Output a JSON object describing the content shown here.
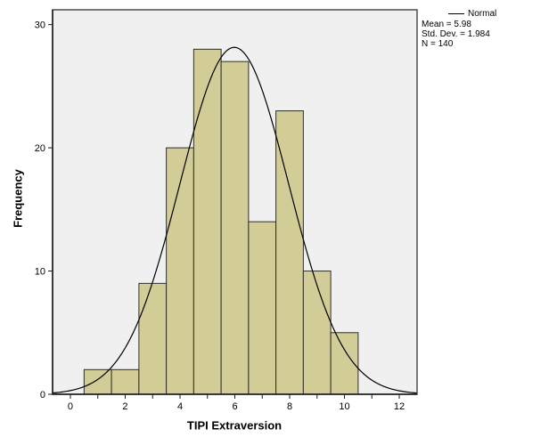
{
  "chart_data": {
    "type": "bar",
    "subtype": "histogram_with_normal_curve",
    "categories": [
      1,
      2,
      3,
      4,
      5,
      6,
      7,
      8,
      9,
      10
    ],
    "values": [
      2,
      2,
      9,
      20,
      28,
      27,
      14,
      23,
      10,
      5
    ],
    "bin_width": 1,
    "title": "",
    "xlabel": "TIPI Extraversion",
    "ylabel": "Frequency",
    "xlim": [
      -0.65,
      12.65
    ],
    "ylim": [
      0,
      31.2
    ],
    "grid": false,
    "legend_position": "top-right-outside",
    "normal_curve": {
      "mean": 5.98,
      "std_dev": 1.984,
      "n": 140
    }
  },
  "x_axis": {
    "title": "TIPI Extraversion",
    "ticks": [
      {
        "value": 0,
        "label": "0"
      },
      {
        "value": 1,
        "label": ""
      },
      {
        "value": 2,
        "label": "2"
      },
      {
        "value": 3,
        "label": ""
      },
      {
        "value": 4,
        "label": "4"
      },
      {
        "value": 5,
        "label": ""
      },
      {
        "value": 6,
        "label": "6"
      },
      {
        "value": 7,
        "label": ""
      },
      {
        "value": 8,
        "label": "8"
      },
      {
        "value": 9,
        "label": ""
      },
      {
        "value": 10,
        "label": "10"
      },
      {
        "value": 11,
        "label": ""
      },
      {
        "value": 12,
        "label": "12"
      }
    ]
  },
  "y_axis": {
    "title": "Frequency",
    "ticks": [
      {
        "value": 0,
        "label": "0"
      },
      {
        "value": 10,
        "label": "10"
      },
      {
        "value": 20,
        "label": "20"
      },
      {
        "value": 30,
        "label": "30"
      }
    ]
  },
  "legend": {
    "normal_label": "Normal",
    "mean": "Mean = 5.98",
    "std_dev": "Std. Dev. = 1.984",
    "n": "N = 140"
  },
  "colors": {
    "bar_fill": "#d2cc96",
    "bar_stroke": "#2e2e28",
    "plot_bg": "#f0f0f0",
    "frame": "#4d4d4d",
    "axis": "#1a1a1a",
    "curve": "#000000",
    "text": "#000000",
    "figure_bg": "#ffffff"
  }
}
